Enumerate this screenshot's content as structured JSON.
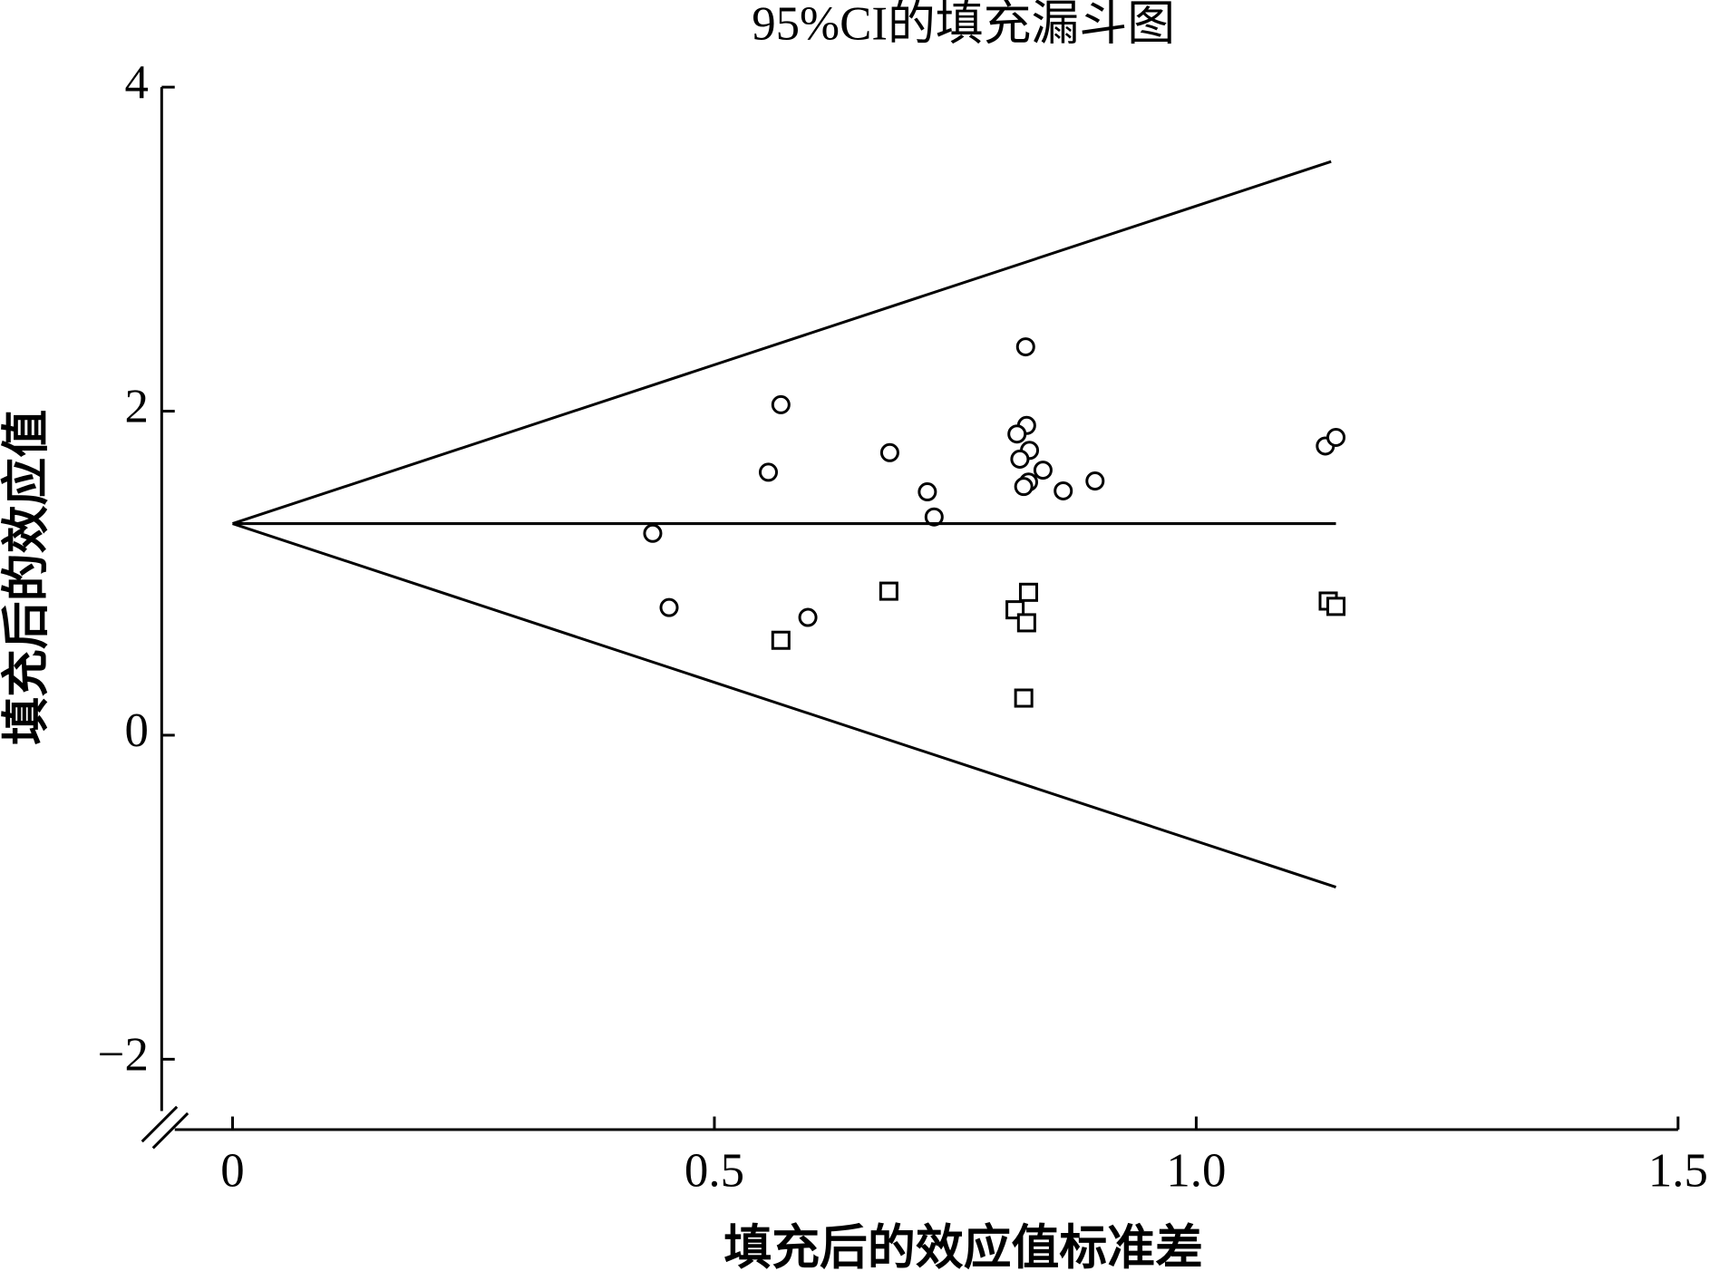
{
  "chart_data": {
    "type": "scatter",
    "title": "95%CI的填充漏斗图",
    "xlabel": "填充后的效应值标准差",
    "ylabel": "填充后的效应值",
    "xlim": [
      -0.06,
      1.5
    ],
    "ylim": [
      -2.32,
      4
    ],
    "xticks": [
      0,
      0.5,
      {
        "value": 1,
        "label": "1.0"
      },
      1.5
    ],
    "yticks": [
      {
        "value": -2,
        "label": "−2"
      },
      0,
      2,
      4
    ],
    "axis_break": true,
    "series": [
      {
        "marker": "circle",
        "color": "#000000",
        "x": [
          0.436,
          0.453,
          0.556,
          0.569,
          0.597,
          0.682,
          0.721,
          0.728,
          0.823,
          0.824,
          0.814,
          0.827,
          0.817,
          0.841,
          0.826,
          0.821,
          0.862,
          0.895,
          1.134,
          1.145
        ],
        "values": [
          1.246,
          0.788,
          1.623,
          2.04,
          0.727,
          1.744,
          1.502,
          1.347,
          2.397,
          1.912,
          1.859,
          1.758,
          1.704,
          1.636,
          1.562,
          1.535,
          1.508,
          1.569,
          1.785,
          1.838
        ]
      },
      {
        "marker": "square",
        "color": "#000000",
        "x": [
          0.569,
          0.681,
          0.812,
          0.826,
          0.824,
          0.821,
          1.137,
          1.145
        ],
        "values": [
          0.586,
          0.889,
          0.774,
          0.882,
          0.694,
          0.229,
          0.828,
          0.795
        ]
      },
      {
        "marker": "line",
        "color": "#000000",
        "x": [
          0,
          1.14
        ],
        "values": [
          1.306,
          3.541
        ]
      },
      {
        "marker": "line",
        "color": "#000000",
        "x": [
          0,
          1.145
        ],
        "values": [
          1.306,
          1.306
        ]
      },
      {
        "marker": "line",
        "color": "#000000",
        "x": [
          0,
          1.145
        ],
        "values": [
          1.306,
          -0.938
        ]
      }
    ]
  }
}
